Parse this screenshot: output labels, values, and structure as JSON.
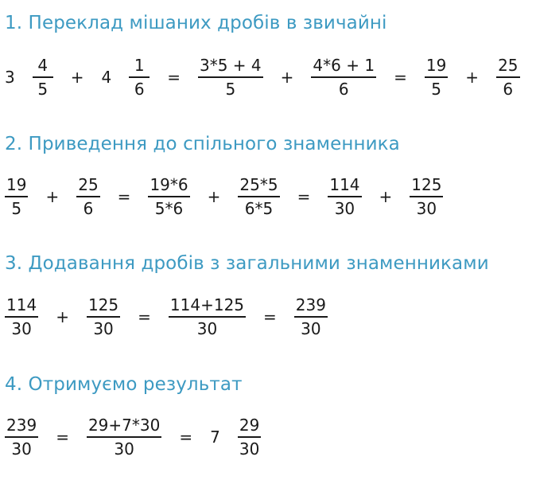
{
  "sections": [
    {
      "heading": "1. Переклад мішаних дробів в звичайні",
      "expr": [
        {
          "type": "num",
          "v": "3"
        },
        {
          "type": "frac",
          "n": "4",
          "d": "5"
        },
        {
          "type": "op",
          "v": "+"
        },
        {
          "type": "num",
          "v": "4"
        },
        {
          "type": "frac",
          "n": "1",
          "d": "6"
        },
        {
          "type": "op",
          "v": "="
        },
        {
          "type": "frac",
          "n": "3*5 + 4",
          "d": "5"
        },
        {
          "type": "op",
          "v": "+"
        },
        {
          "type": "frac",
          "n": "4*6 + 1",
          "d": "6"
        },
        {
          "type": "op",
          "v": "="
        },
        {
          "type": "frac",
          "n": "19",
          "d": "5"
        },
        {
          "type": "op",
          "v": "+"
        },
        {
          "type": "frac",
          "n": "25",
          "d": "6"
        }
      ]
    },
    {
      "heading": "2. Приведення до спільного знаменника",
      "expr": [
        {
          "type": "frac",
          "n": "19",
          "d": "5"
        },
        {
          "type": "op",
          "v": "+"
        },
        {
          "type": "frac",
          "n": "25",
          "d": "6"
        },
        {
          "type": "op",
          "v": "="
        },
        {
          "type": "frac",
          "n": "19*6",
          "d": "5*6"
        },
        {
          "type": "op",
          "v": "+"
        },
        {
          "type": "frac",
          "n": "25*5",
          "d": "6*5"
        },
        {
          "type": "op",
          "v": "="
        },
        {
          "type": "frac",
          "n": "114",
          "d": "30"
        },
        {
          "type": "op",
          "v": "+"
        },
        {
          "type": "frac",
          "n": "125",
          "d": "30"
        }
      ]
    },
    {
      "heading": "3. Додавання дробів з загальними знаменниками",
      "expr": [
        {
          "type": "frac",
          "n": "114",
          "d": "30"
        },
        {
          "type": "op",
          "v": "+"
        },
        {
          "type": "frac",
          "n": "125",
          "d": "30"
        },
        {
          "type": "op",
          "v": "="
        },
        {
          "type": "frac",
          "n": "114+125",
          "d": "30"
        },
        {
          "type": "op",
          "v": "="
        },
        {
          "type": "frac",
          "n": "239",
          "d": "30"
        }
      ]
    },
    {
      "heading": "4. Отримуємо результат",
      "expr": [
        {
          "type": "frac",
          "n": "239",
          "d": "30"
        },
        {
          "type": "op",
          "v": "="
        },
        {
          "type": "frac",
          "n": "29+7*30",
          "d": "30"
        },
        {
          "type": "op",
          "v": "="
        },
        {
          "type": "num",
          "v": "7"
        },
        {
          "type": "frac",
          "n": "29",
          "d": "30"
        }
      ]
    }
  ],
  "colors": {
    "heading": "#3d9ac2",
    "text": "#1a1a1a"
  }
}
